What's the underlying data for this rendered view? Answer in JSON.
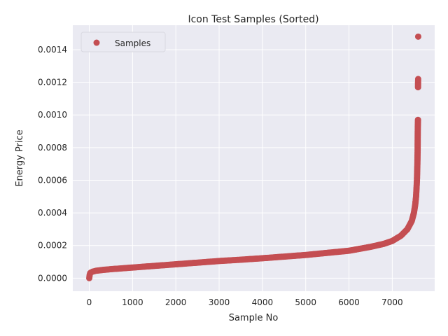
{
  "chart_data": {
    "type": "scatter",
    "title": "Icon Test Samples (Sorted)",
    "xlabel": "Sample No",
    "ylabel": "Energy Price",
    "xlim": [
      -380,
      7980
    ],
    "ylim": [
      -8e-05,
      0.00155
    ],
    "x_ticks": [
      0,
      1000,
      2000,
      3000,
      4000,
      5000,
      6000,
      7000
    ],
    "y_ticks": [
      0.0,
      0.0002,
      0.0004,
      0.0006,
      0.0008,
      0.001,
      0.0012,
      0.0014
    ],
    "x_tick_labels": [
      "0",
      "1000",
      "2000",
      "3000",
      "4000",
      "5000",
      "6000",
      "7000"
    ],
    "y_tick_labels": [
      "0.0000",
      "0.0002",
      "0.0004",
      "0.0006",
      "0.0008",
      "0.0010",
      "0.0012",
      "0.0014"
    ],
    "grid": true,
    "legend_position": "top-left",
    "colors": {
      "background": "#EAEAF2",
      "grid": "#ffffff",
      "marker": "#C44E52"
    },
    "series": [
      {
        "name": "Samples",
        "color": "#C44E52",
        "x": [
          0,
          5,
          10,
          20,
          40,
          80,
          150,
          300,
          500,
          1000,
          1500,
          2000,
          2500,
          3000,
          3500,
          4000,
          4500,
          5000,
          5500,
          6000,
          6500,
          6800,
          7000,
          7200,
          7350,
          7450,
          7500,
          7530,
          7550,
          7560,
          7570,
          7575,
          7580,
          7583,
          7586,
          7588,
          7590,
          7592,
          7594,
          7595,
          7596,
          7597,
          7598,
          7599
        ],
        "y": [
          0.0,
          1e-05,
          2e-05,
          3e-05,
          3.5e-05,
          4e-05,
          4.5e-05,
          5e-05,
          5.5e-05,
          6.5e-05,
          7.5e-05,
          8.5e-05,
          9.5e-05,
          0.000105,
          0.000113,
          0.000122,
          0.000132,
          0.000142,
          0.000155,
          0.000168,
          0.000192,
          0.00021,
          0.000228,
          0.00026,
          0.0003,
          0.00035,
          0.0004,
          0.00045,
          0.0005,
          0.00055,
          0.0006,
          0.00065,
          0.0007,
          0.00075,
          0.00078,
          0.00088,
          0.00093,
          0.00095,
          0.00097,
          0.00117,
          0.0012,
          0.00121,
          0.00122,
          0.00148
        ]
      }
    ]
  }
}
